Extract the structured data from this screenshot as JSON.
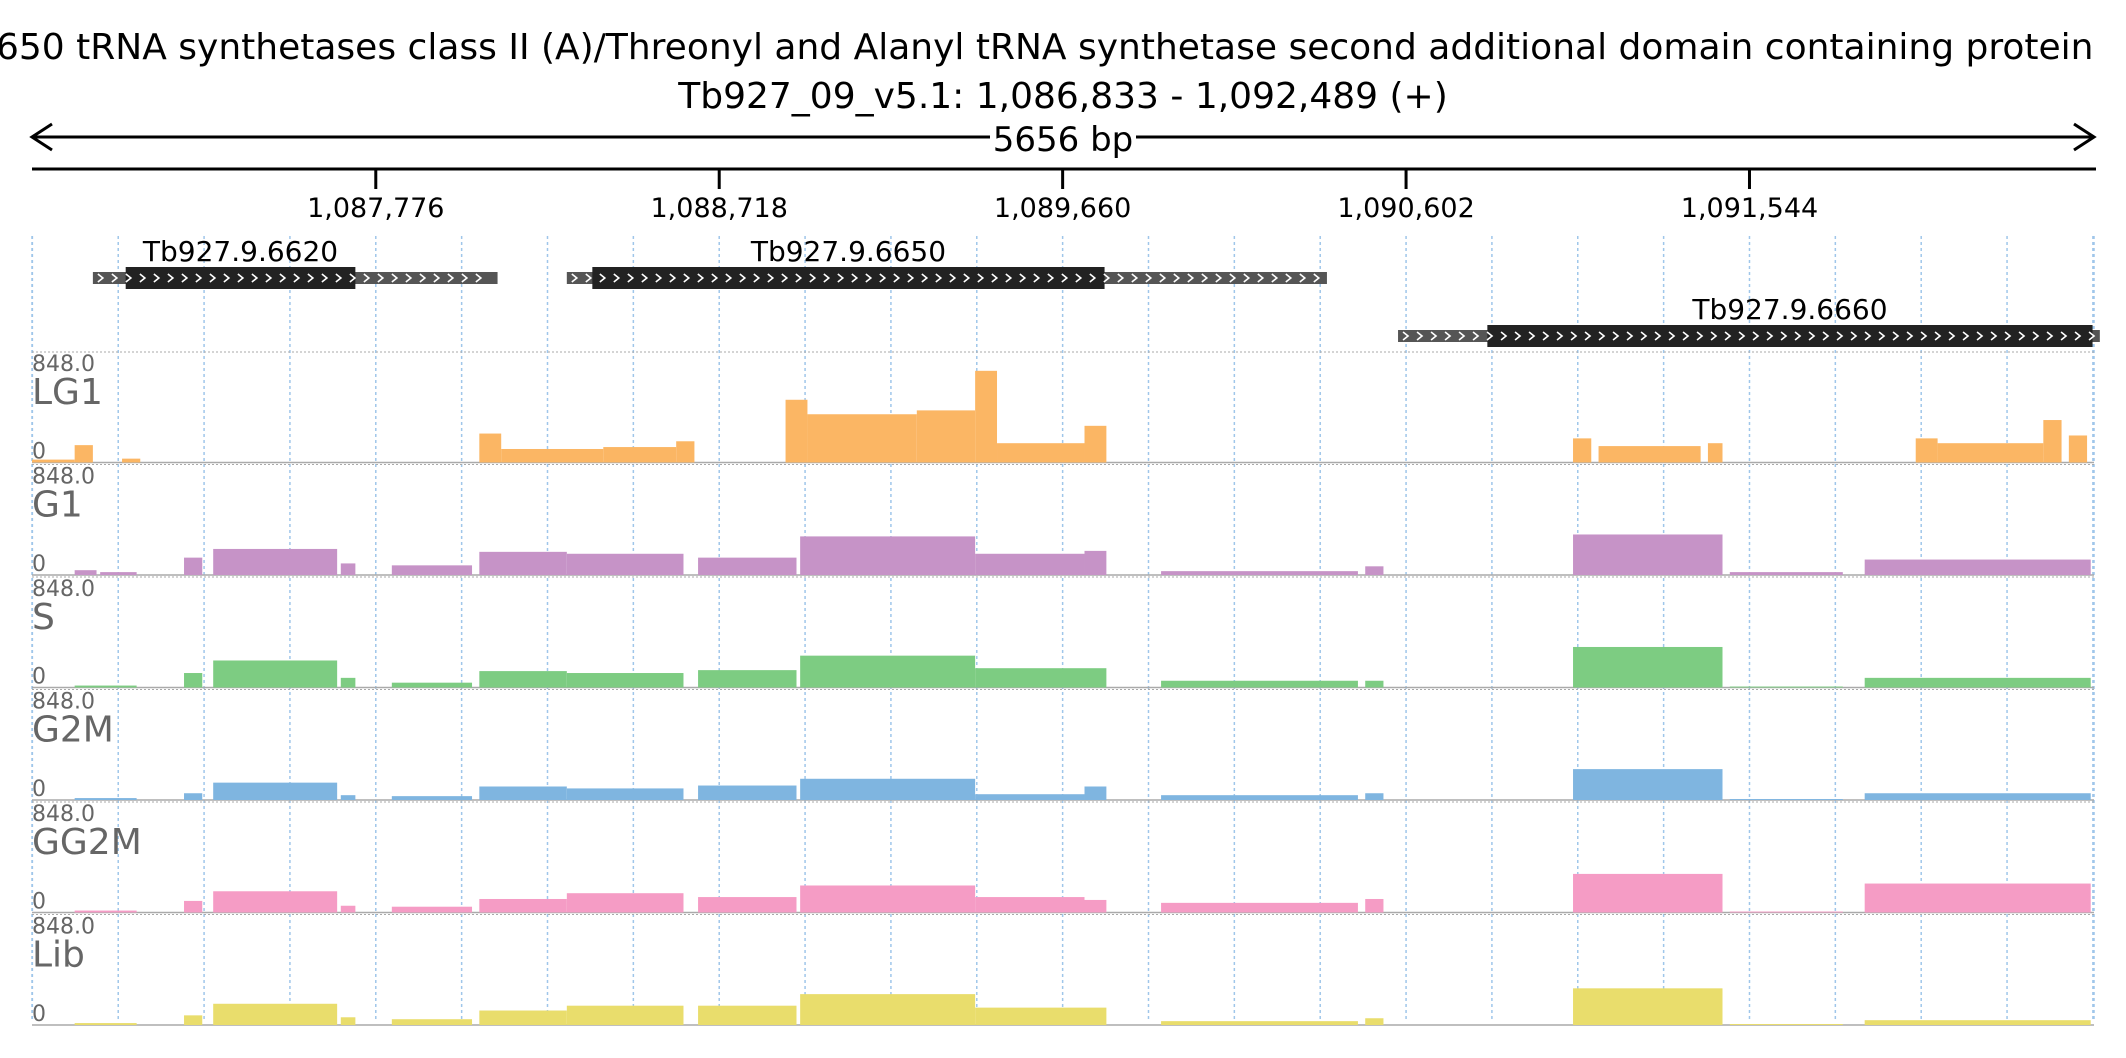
{
  "header": {
    "title": "650  tRNA synthetases class II (A)/Threonyl and Alanyl tRNA synthetase second additional domain containing protein",
    "locus": "Tb927_09_v5.1: 1,086,833 - 1,092,489 (+)",
    "span_label": "5656 bp"
  },
  "region": {
    "start": 1086833,
    "end": 1092489,
    "strand": "+"
  },
  "ruler": {
    "ticks": [
      {
        "pos": 1087776,
        "label": "1,087,776"
      },
      {
        "pos": 1088718,
        "label": "1,088,718"
      },
      {
        "pos": 1089660,
        "label": "1,089,660"
      },
      {
        "pos": 1090602,
        "label": "1,090,602"
      },
      {
        "pos": 1091544,
        "label": "1,091,544"
      }
    ]
  },
  "genes": [
    {
      "name": "Tb927.9.6620",
      "start": 1087000,
      "end": 1088110,
      "cds_start": 1087090,
      "cds_end": 1087720,
      "row": 0
    },
    {
      "name": "Tb927.9.6650",
      "start": 1088300,
      "end": 1090385,
      "cds_start": 1088370,
      "cds_end": 1089775,
      "row": 0
    },
    {
      "name": "Tb927.9.6660",
      "start": 1090580,
      "end": 1092505,
      "cds_start": 1090825,
      "cds_end": 1092485,
      "row": 1
    }
  ],
  "tracks": [
    {
      "name": "LG1",
      "max_label": "848.0",
      "min_label": "0",
      "color": "#fbb664",
      "segments": [
        {
          "start": 1086833,
          "end": 1086950,
          "level": 0.03
        },
        {
          "start": 1086950,
          "end": 1087000,
          "level": 0.18
        },
        {
          "start": 1087080,
          "end": 1087130,
          "level": 0.04
        },
        {
          "start": 1088060,
          "end": 1088120,
          "level": 0.3
        },
        {
          "start": 1088120,
          "end": 1088400,
          "level": 0.14
        },
        {
          "start": 1088400,
          "end": 1088600,
          "level": 0.16
        },
        {
          "start": 1088600,
          "end": 1088650,
          "level": 0.22
        },
        {
          "start": 1088900,
          "end": 1088960,
          "level": 0.65
        },
        {
          "start": 1088960,
          "end": 1089260,
          "level": 0.5
        },
        {
          "start": 1089260,
          "end": 1089420,
          "level": 0.54
        },
        {
          "start": 1089420,
          "end": 1089480,
          "level": 0.95
        },
        {
          "start": 1089480,
          "end": 1089720,
          "level": 0.2
        },
        {
          "start": 1089720,
          "end": 1089780,
          "level": 0.38
        },
        {
          "start": 1091060,
          "end": 1091110,
          "level": 0.25
        },
        {
          "start": 1091130,
          "end": 1091410,
          "level": 0.17
        },
        {
          "start": 1091430,
          "end": 1091470,
          "level": 0.2
        },
        {
          "start": 1092000,
          "end": 1092060,
          "level": 0.25
        },
        {
          "start": 1092060,
          "end": 1092350,
          "level": 0.2
        },
        {
          "start": 1092350,
          "end": 1092400,
          "level": 0.44
        },
        {
          "start": 1092420,
          "end": 1092470,
          "level": 0.28
        }
      ]
    },
    {
      "name": "G1",
      "max_label": "848.0",
      "min_label": "0",
      "color": "#c693c7",
      "segments": [
        {
          "start": 1086950,
          "end": 1087010,
          "level": 0.05
        },
        {
          "start": 1087020,
          "end": 1087120,
          "level": 0.03
        },
        {
          "start": 1087250,
          "end": 1087300,
          "level": 0.18
        },
        {
          "start": 1087330,
          "end": 1087670,
          "level": 0.27
        },
        {
          "start": 1087680,
          "end": 1087720,
          "level": 0.12
        },
        {
          "start": 1087820,
          "end": 1088040,
          "level": 0.1
        },
        {
          "start": 1088060,
          "end": 1088300,
          "level": 0.24
        },
        {
          "start": 1088300,
          "end": 1088620,
          "level": 0.22
        },
        {
          "start": 1088660,
          "end": 1088930,
          "level": 0.18
        },
        {
          "start": 1088940,
          "end": 1089420,
          "level": 0.4
        },
        {
          "start": 1089420,
          "end": 1089720,
          "level": 0.22
        },
        {
          "start": 1089720,
          "end": 1089780,
          "level": 0.25
        },
        {
          "start": 1089930,
          "end": 1090470,
          "level": 0.04
        },
        {
          "start": 1090490,
          "end": 1090540,
          "level": 0.09
        },
        {
          "start": 1091060,
          "end": 1091470,
          "level": 0.42
        },
        {
          "start": 1091490,
          "end": 1091800,
          "level": 0.03
        },
        {
          "start": 1091860,
          "end": 1092480,
          "level": 0.16
        }
      ]
    },
    {
      "name": "S",
      "max_label": "848.0",
      "min_label": "0",
      "color": "#7dcc82",
      "segments": [
        {
          "start": 1086950,
          "end": 1087120,
          "level": 0.02
        },
        {
          "start": 1087250,
          "end": 1087300,
          "level": 0.15
        },
        {
          "start": 1087330,
          "end": 1087670,
          "level": 0.28
        },
        {
          "start": 1087680,
          "end": 1087720,
          "level": 0.1
        },
        {
          "start": 1087820,
          "end": 1088040,
          "level": 0.05
        },
        {
          "start": 1088060,
          "end": 1088300,
          "level": 0.17
        },
        {
          "start": 1088300,
          "end": 1088620,
          "level": 0.15
        },
        {
          "start": 1088660,
          "end": 1088930,
          "level": 0.18
        },
        {
          "start": 1088940,
          "end": 1089420,
          "level": 0.33
        },
        {
          "start": 1089420,
          "end": 1089780,
          "level": 0.2
        },
        {
          "start": 1089930,
          "end": 1090470,
          "level": 0.07
        },
        {
          "start": 1090490,
          "end": 1090540,
          "level": 0.07
        },
        {
          "start": 1091060,
          "end": 1091470,
          "level": 0.42
        },
        {
          "start": 1091490,
          "end": 1091800,
          "level": 0.01
        },
        {
          "start": 1091860,
          "end": 1092480,
          "level": 0.1
        }
      ]
    },
    {
      "name": "G2M",
      "max_label": "848.0",
      "min_label": "0",
      "color": "#7fb5e0",
      "segments": [
        {
          "start": 1086950,
          "end": 1087120,
          "level": 0.02
        },
        {
          "start": 1087250,
          "end": 1087300,
          "level": 0.07
        },
        {
          "start": 1087330,
          "end": 1087670,
          "level": 0.18
        },
        {
          "start": 1087680,
          "end": 1087720,
          "level": 0.05
        },
        {
          "start": 1087820,
          "end": 1088040,
          "level": 0.04
        },
        {
          "start": 1088060,
          "end": 1088300,
          "level": 0.14
        },
        {
          "start": 1088300,
          "end": 1088620,
          "level": 0.12
        },
        {
          "start": 1088660,
          "end": 1088930,
          "level": 0.15
        },
        {
          "start": 1088940,
          "end": 1089420,
          "level": 0.22
        },
        {
          "start": 1089420,
          "end": 1089720,
          "level": 0.06
        },
        {
          "start": 1089720,
          "end": 1089780,
          "level": 0.14
        },
        {
          "start": 1089930,
          "end": 1090470,
          "level": 0.05
        },
        {
          "start": 1090490,
          "end": 1090540,
          "level": 0.07
        },
        {
          "start": 1091060,
          "end": 1091470,
          "level": 0.32
        },
        {
          "start": 1091490,
          "end": 1091800,
          "level": 0.01
        },
        {
          "start": 1091860,
          "end": 1092480,
          "level": 0.07
        }
      ]
    },
    {
      "name": "GG2M",
      "max_label": "848.0",
      "min_label": "0",
      "color": "#f59cc5",
      "segments": [
        {
          "start": 1086950,
          "end": 1087120,
          "level": 0.02
        },
        {
          "start": 1087250,
          "end": 1087300,
          "level": 0.12
        },
        {
          "start": 1087330,
          "end": 1087670,
          "level": 0.22
        },
        {
          "start": 1087680,
          "end": 1087720,
          "level": 0.07
        },
        {
          "start": 1087820,
          "end": 1088040,
          "level": 0.06
        },
        {
          "start": 1088060,
          "end": 1088300,
          "level": 0.14
        },
        {
          "start": 1088300,
          "end": 1088620,
          "level": 0.2
        },
        {
          "start": 1088660,
          "end": 1088930,
          "level": 0.16
        },
        {
          "start": 1088940,
          "end": 1089420,
          "level": 0.28
        },
        {
          "start": 1089420,
          "end": 1089720,
          "level": 0.16
        },
        {
          "start": 1089720,
          "end": 1089780,
          "level": 0.13
        },
        {
          "start": 1089930,
          "end": 1090470,
          "level": 0.1
        },
        {
          "start": 1090490,
          "end": 1090540,
          "level": 0.14
        },
        {
          "start": 1091060,
          "end": 1091470,
          "level": 0.4
        },
        {
          "start": 1091490,
          "end": 1091800,
          "level": 0.01
        },
        {
          "start": 1091860,
          "end": 1092480,
          "level": 0.3
        }
      ]
    },
    {
      "name": "Lib",
      "max_label": "848.0",
      "min_label": "0",
      "color": "#e9dd6c",
      "segments": [
        {
          "start": 1086950,
          "end": 1087120,
          "level": 0.02
        },
        {
          "start": 1087250,
          "end": 1087300,
          "level": 0.1
        },
        {
          "start": 1087330,
          "end": 1087670,
          "level": 0.22
        },
        {
          "start": 1087680,
          "end": 1087720,
          "level": 0.08
        },
        {
          "start": 1087820,
          "end": 1088040,
          "level": 0.06
        },
        {
          "start": 1088060,
          "end": 1088300,
          "level": 0.15
        },
        {
          "start": 1088300,
          "end": 1088620,
          "level": 0.2
        },
        {
          "start": 1088660,
          "end": 1088930,
          "level": 0.2
        },
        {
          "start": 1088940,
          "end": 1089420,
          "level": 0.32
        },
        {
          "start": 1089420,
          "end": 1089780,
          "level": 0.18
        },
        {
          "start": 1089930,
          "end": 1090470,
          "level": 0.04
        },
        {
          "start": 1090490,
          "end": 1090540,
          "level": 0.07
        },
        {
          "start": 1091060,
          "end": 1091470,
          "level": 0.38
        },
        {
          "start": 1091490,
          "end": 1091800,
          "level": 0.01
        },
        {
          "start": 1091860,
          "end": 1092480,
          "level": 0.05
        }
      ]
    }
  ]
}
